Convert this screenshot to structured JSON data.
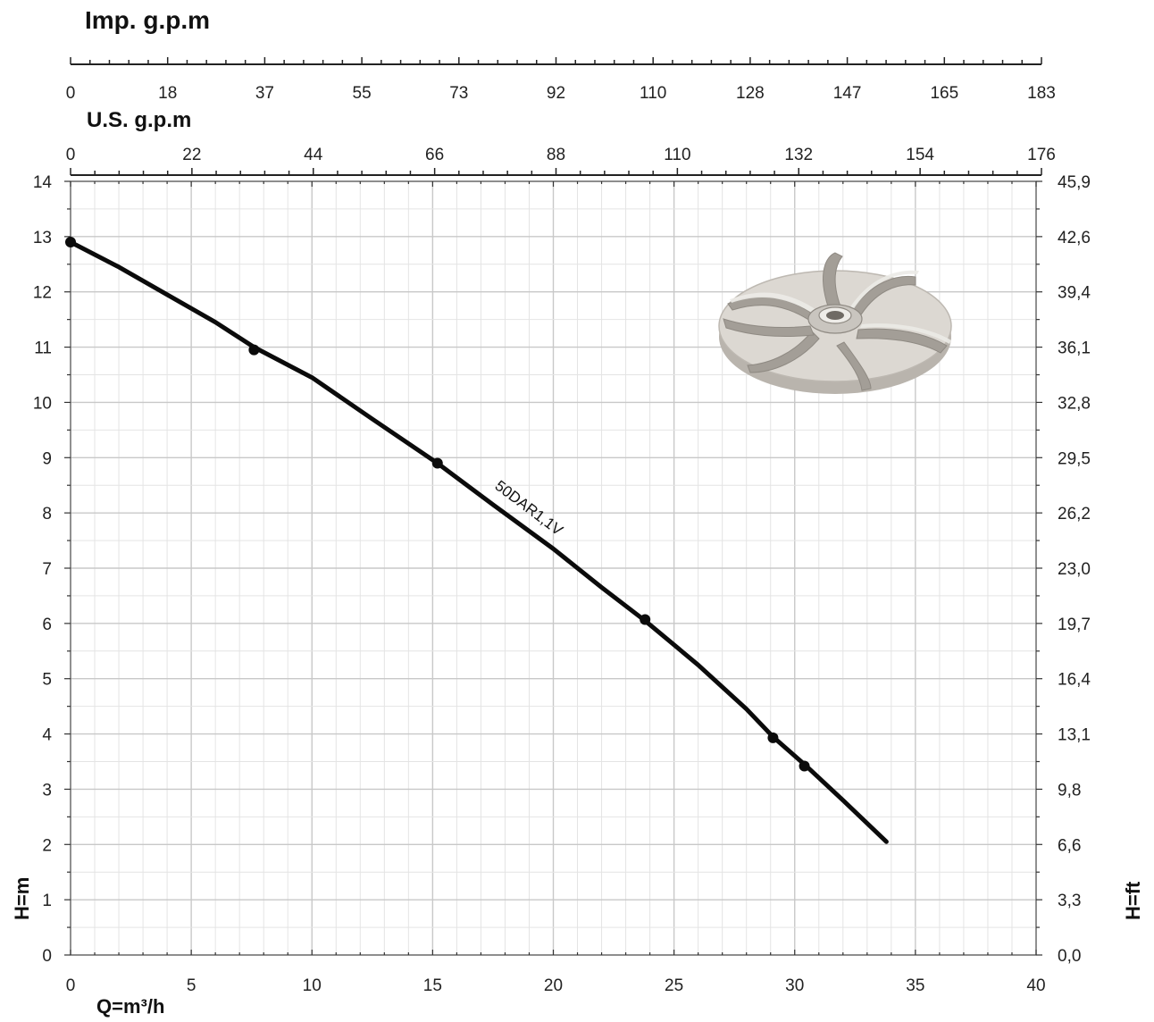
{
  "chart_data": {
    "type": "line",
    "title": "",
    "xlabel": "Q=m³/h",
    "ylabel": "H=m",
    "ylabel_right": "H=ft",
    "top_axis_1_label": "Imp. g.p.m",
    "top_axis_2_label": "U.S. g.p.m",
    "xlim": [
      0,
      40
    ],
    "ylim": [
      0,
      14
    ],
    "grid": true,
    "x_ticks": [
      "0",
      "5",
      "10",
      "15",
      "20",
      "25",
      "30",
      "35",
      "40"
    ],
    "y_ticks": [
      "0",
      "1",
      "2",
      "3",
      "4",
      "5",
      "6",
      "7",
      "8",
      "9",
      "10",
      "11",
      "12",
      "13",
      "14"
    ],
    "y_right_ticks": [
      "0,0",
      "3,3",
      "6,6",
      "9,8",
      "13,1",
      "16,4",
      "19,7",
      "23,0",
      "26,2",
      "29,5",
      "32,8",
      "36,1",
      "39,4",
      "42,6",
      "45,9"
    ],
    "imp_gpm_ticks": [
      "0",
      "18",
      "37",
      "55",
      "73",
      "92",
      "110",
      "128",
      "147",
      "165",
      "183"
    ],
    "us_gpm_ticks": [
      "0",
      "22",
      "44",
      "66",
      "88",
      "110",
      "132",
      "154",
      "176"
    ],
    "series": [
      {
        "name": "50DAR1,1V",
        "x": [
          0,
          2,
          4,
          6,
          7.6,
          10,
          12.5,
          15.2,
          17.5,
          20,
          22,
          23.8,
          26,
          28,
          29.1,
          30.4,
          32,
          33.8
        ],
        "y": [
          12.9,
          12.45,
          11.95,
          11.45,
          11.0,
          10.45,
          9.7,
          8.9,
          8.15,
          7.35,
          6.65,
          6.05,
          5.25,
          4.45,
          3.95,
          3.45,
          2.8,
          2.05
        ]
      }
    ],
    "markers": {
      "x": [
        0,
        7.6,
        15.2,
        23.8,
        29.1,
        30.4
      ],
      "y": [
        12.9,
        10.95,
        8.9,
        6.07,
        3.93,
        3.42
      ]
    }
  },
  "impeller_image": {
    "name": "impeller-illustration",
    "colors": [
      "#d6d2cc",
      "#a9a49d",
      "#ece9e4",
      "#8f8a83"
    ]
  }
}
